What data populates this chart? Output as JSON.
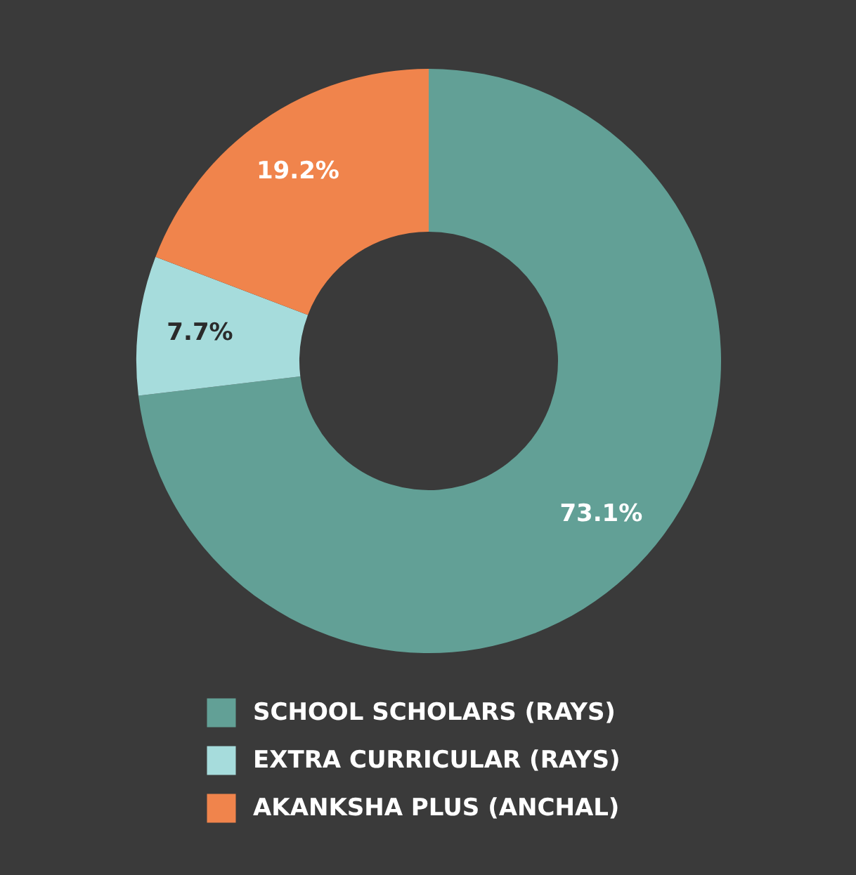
{
  "chart_data": {
    "type": "donut",
    "categories": [
      "SCHOOL SCHOLARS (RAYS)",
      "EXTRA CURRICULAR (RAYS)",
      "AKANKSHA PLUS (ANCHAL)"
    ],
    "values": [
      73.1,
      7.7,
      19.2
    ],
    "colors": [
      "#62a096",
      "#a6dcdc",
      "#f0844c"
    ],
    "value_labels": [
      "73.1%",
      "7.7%",
      "19.2%"
    ],
    "legend": "bottom"
  }
}
